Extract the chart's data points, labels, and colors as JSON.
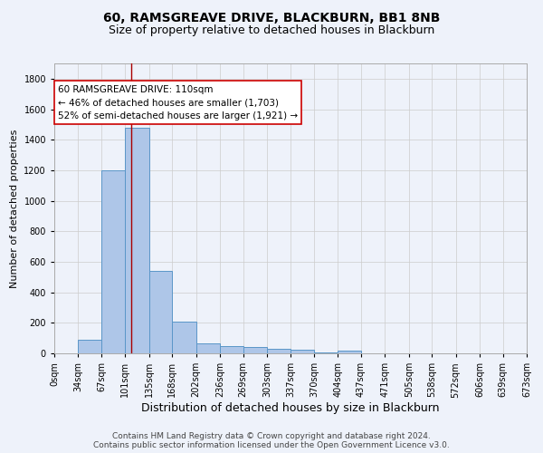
{
  "title1": "60, RAMSGREAVE DRIVE, BLACKBURN, BB1 8NB",
  "title2": "Size of property relative to detached houses in Blackburn",
  "xlabel": "Distribution of detached houses by size in Blackburn",
  "ylabel": "Number of detached properties",
  "footnote1": "Contains HM Land Registry data © Crown copyright and database right 2024.",
  "footnote2": "Contains public sector information licensed under the Open Government Licence v3.0.",
  "annotation_line1": "60 RAMSGREAVE DRIVE: 110sqm",
  "annotation_line2": "← 46% of detached houses are smaller (1,703)",
  "annotation_line3": "52% of semi-detached houses are larger (1,921) →",
  "bar_edges": [
    0,
    34,
    67,
    101,
    135,
    168,
    202,
    236,
    269,
    303,
    337,
    370,
    404,
    437,
    471,
    505,
    538,
    572,
    606,
    639,
    673
  ],
  "bar_heights": [
    0,
    90,
    1200,
    1480,
    540,
    205,
    65,
    50,
    40,
    28,
    22,
    8,
    15,
    0,
    0,
    0,
    0,
    0,
    0,
    0
  ],
  "bar_color": "#aec6e8",
  "bar_edge_color": "#5a96c8",
  "background_color": "#eef2fa",
  "grid_color": "#cccccc",
  "vline_x": 110,
  "vline_color": "#aa0000",
  "annotation_box_color": "#ffffff",
  "annotation_box_edge": "#cc0000",
  "ylim": [
    0,
    1900
  ],
  "yticks": [
    0,
    200,
    400,
    600,
    800,
    1000,
    1200,
    1400,
    1600,
    1800
  ],
  "xtick_labels": [
    "0sqm",
    "34sqm",
    "67sqm",
    "101sqm",
    "135sqm",
    "168sqm",
    "202sqm",
    "236sqm",
    "269sqm",
    "303sqm",
    "337sqm",
    "370sqm",
    "404sqm",
    "437sqm",
    "471sqm",
    "505sqm",
    "538sqm",
    "572sqm",
    "606sqm",
    "639sqm",
    "673sqm"
  ],
  "title1_fontsize": 10,
  "title2_fontsize": 9,
  "xlabel_fontsize": 9,
  "ylabel_fontsize": 8,
  "annotation_fontsize": 7.5,
  "tick_fontsize": 7,
  "footnote_fontsize": 6.5
}
